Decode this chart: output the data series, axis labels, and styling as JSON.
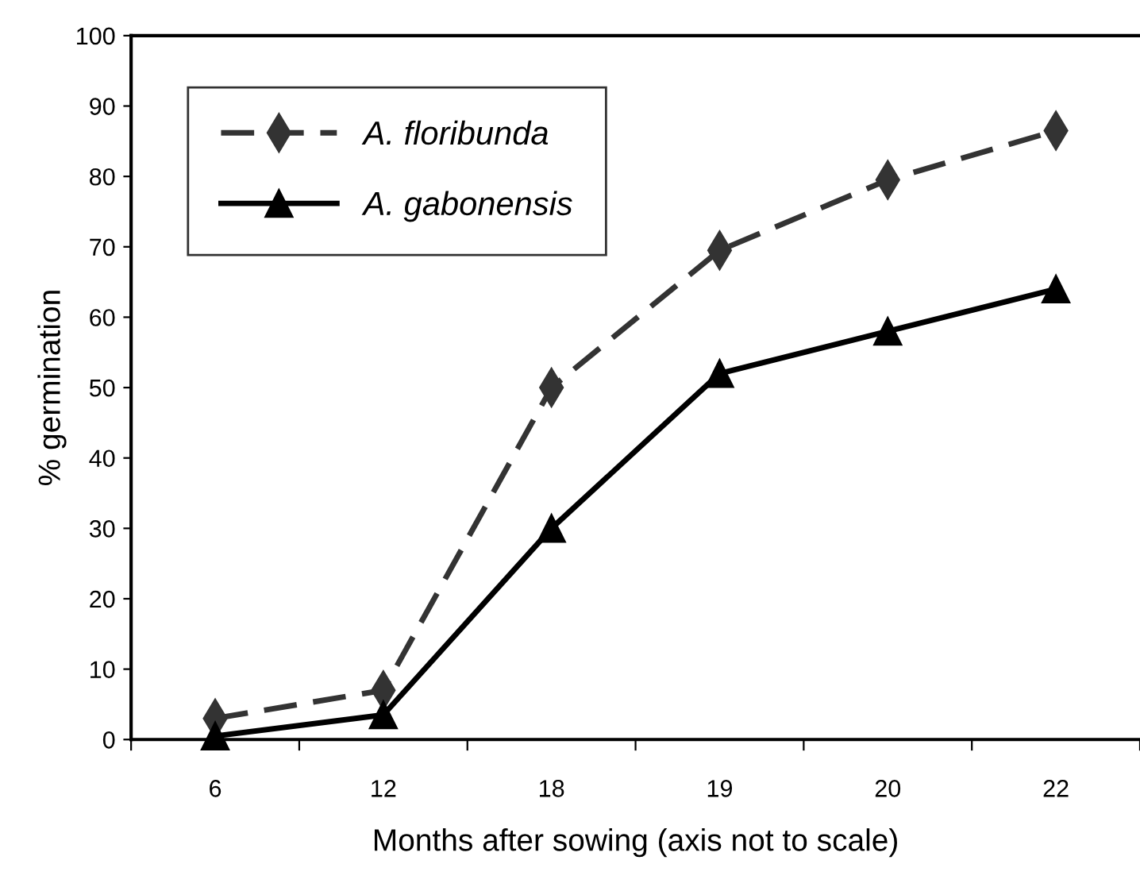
{
  "chart_data": {
    "type": "line",
    "xlabel": "Months after sowing (axis not to scale)",
    "ylabel": "% germination",
    "categories": [
      "6",
      "12",
      "18",
      "19",
      "20",
      "22"
    ],
    "series": [
      {
        "name": "A. floribunda",
        "color": "#333333",
        "line_style": "dashed",
        "marker": "diamond",
        "values": [
          3,
          7,
          50,
          69.5,
          79.5,
          86.5
        ]
      },
      {
        "name": "A. gabonensis",
        "color": "#000000",
        "line_style": "solid",
        "marker": "triangle",
        "values": [
          0.5,
          3.5,
          30,
          52,
          58,
          64
        ]
      }
    ],
    "ylim": [
      0,
      100
    ],
    "yticks": [
      0,
      10,
      20,
      30,
      40,
      50,
      60,
      70,
      80,
      90,
      100
    ],
    "grid": false,
    "legend": "top left"
  }
}
